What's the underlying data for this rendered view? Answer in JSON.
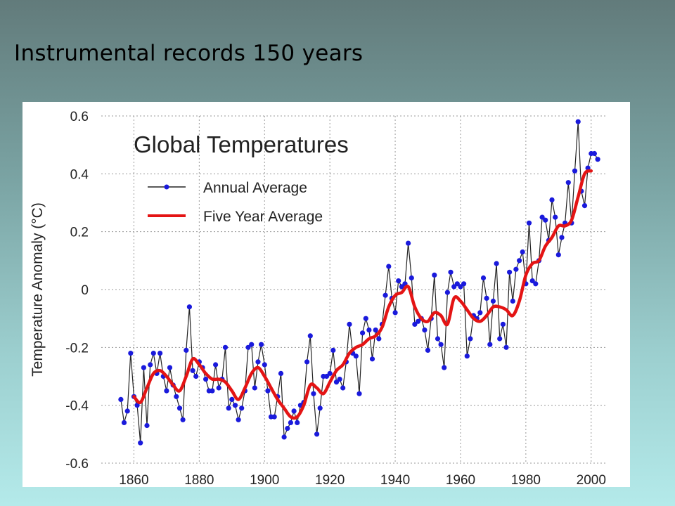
{
  "slide": {
    "title": "Instrumental records 150 years"
  },
  "colors": {
    "annual_marker": "#1a1adc",
    "annual_line": "#222222",
    "five_year": "#e41414",
    "grid": "#9a9a9a"
  },
  "chart_data": {
    "type": "line",
    "title": "Global Temperatures",
    "xlabel": "",
    "ylabel": "Temperature Anomaly (°C)",
    "xlim": [
      1850,
      2005
    ],
    "ylim": [
      -0.6,
      0.6
    ],
    "xticks": [
      1860,
      1880,
      1900,
      1920,
      1940,
      1960,
      1980,
      2000
    ],
    "yticks": [
      -0.6,
      -0.4,
      -0.2,
      0,
      0.2,
      0.4,
      0.6
    ],
    "ytick_labels": [
      "-0.6",
      "-0.4",
      "-0.2",
      "0",
      "0.2",
      "0.4",
      "0.6"
    ],
    "grid": true,
    "legend_position": "top-left",
    "series": [
      {
        "name": "Annual Average",
        "style": "line-with-markers",
        "x_start": 1856,
        "values": [
          -0.38,
          -0.46,
          -0.42,
          -0.22,
          -0.37,
          -0.4,
          -0.53,
          -0.27,
          -0.47,
          -0.26,
          -0.22,
          -0.29,
          -0.22,
          -0.3,
          -0.35,
          -0.27,
          -0.33,
          -0.37,
          -0.41,
          -0.45,
          -0.21,
          -0.06,
          -0.28,
          -0.3,
          -0.25,
          -0.27,
          -0.31,
          -0.35,
          -0.35,
          -0.26,
          -0.34,
          -0.31,
          -0.2,
          -0.41,
          -0.38,
          -0.4,
          -0.45,
          -0.41,
          -0.35,
          -0.2,
          -0.19,
          -0.34,
          -0.25,
          -0.19,
          -0.26,
          -0.35,
          -0.44,
          -0.44,
          -0.37,
          -0.29,
          -0.51,
          -0.48,
          -0.46,
          -0.42,
          -0.46,
          -0.4,
          -0.39,
          -0.25,
          -0.16,
          -0.36,
          -0.5,
          -0.41,
          -0.3,
          -0.3,
          -0.29,
          -0.21,
          -0.32,
          -0.31,
          -0.34,
          -0.25,
          -0.12,
          -0.22,
          -0.23,
          -0.36,
          -0.15,
          -0.1,
          -0.14,
          -0.24,
          -0.14,
          -0.17,
          -0.12,
          -0.02,
          0.08,
          -0.03,
          -0.08,
          0.03,
          0.01,
          0.02,
          0.16,
          0.04,
          -0.12,
          -0.11,
          -0.1,
          -0.14,
          -0.21,
          -0.1,
          0.05,
          -0.17,
          -0.19,
          -0.27,
          -0.01,
          0.06,
          0.01,
          0.02,
          0.01,
          0.02,
          -0.23,
          -0.17,
          -0.09,
          -0.1,
          -0.08,
          0.04,
          -0.03,
          -0.19,
          -0.04,
          0.09,
          -0.17,
          -0.12,
          -0.2,
          0.06,
          -0.04,
          0.07,
          0.1,
          0.13,
          0.02,
          0.23,
          0.03,
          0.02,
          0.1,
          0.25,
          0.24,
          0.17,
          0.31,
          0.25,
          0.12,
          0.18,
          0.23,
          0.37,
          0.23,
          0.41,
          0.58,
          0.34,
          0.29,
          0.42,
          0.47,
          0.47,
          0.45
        ]
      },
      {
        "name": "Five Year Average",
        "style": "line",
        "x": [
          1860,
          1862,
          1864,
          1866,
          1868,
          1870,
          1872,
          1874,
          1876,
          1878,
          1880,
          1882,
          1884,
          1886,
          1888,
          1890,
          1892,
          1894,
          1896,
          1898,
          1900,
          1902,
          1904,
          1906,
          1908,
          1910,
          1912,
          1914,
          1916,
          1918,
          1920,
          1922,
          1924,
          1926,
          1928,
          1930,
          1932,
          1934,
          1936,
          1938,
          1940,
          1942,
          1944,
          1946,
          1948,
          1950,
          1952,
          1954,
          1956,
          1958,
          1960,
          1962,
          1964,
          1966,
          1968,
          1970,
          1972,
          1974,
          1976,
          1978,
          1980,
          1982,
          1984,
          1986,
          1988,
          1990,
          1992,
          1994,
          1996,
          1998,
          2000
        ],
        "values": [
          -0.37,
          -0.39,
          -0.34,
          -0.29,
          -0.28,
          -0.3,
          -0.33,
          -0.35,
          -0.3,
          -0.24,
          -0.26,
          -0.29,
          -0.31,
          -0.31,
          -0.32,
          -0.35,
          -0.38,
          -0.34,
          -0.29,
          -0.27,
          -0.3,
          -0.34,
          -0.38,
          -0.41,
          -0.44,
          -0.44,
          -0.4,
          -0.33,
          -0.34,
          -0.36,
          -0.32,
          -0.28,
          -0.26,
          -0.22,
          -0.2,
          -0.19,
          -0.17,
          -0.16,
          -0.13,
          -0.06,
          -0.02,
          -0.01,
          0.01,
          -0.06,
          -0.1,
          -0.11,
          -0.08,
          -0.09,
          -0.12,
          -0.03,
          -0.04,
          -0.07,
          -0.1,
          -0.11,
          -0.09,
          -0.06,
          -0.06,
          -0.07,
          -0.09,
          -0.04,
          0.05,
          0.09,
          0.1,
          0.15,
          0.18,
          0.22,
          0.22,
          0.24,
          0.32,
          0.4,
          0.41
        ]
      }
    ]
  }
}
